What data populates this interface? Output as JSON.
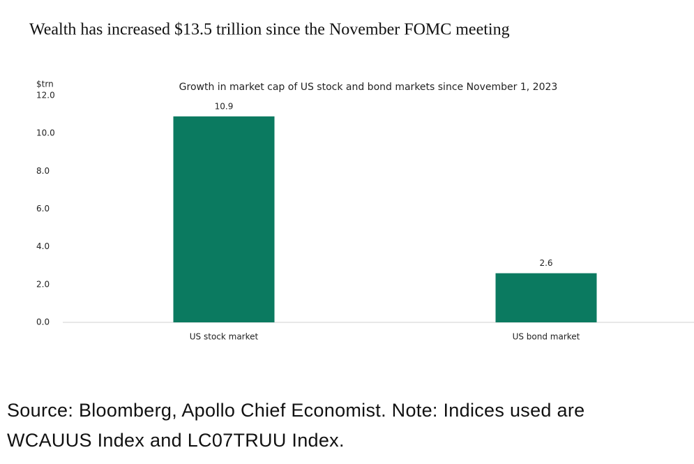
{
  "chart_data": {
    "type": "bar",
    "title": "Wealth has increased $13.5 trillion since the November FOMC meeting",
    "subtitle": "Growth in market cap of US stock and bond markets since November 1, 2023",
    "y_axis_label": "$trn",
    "categories": [
      "US stock market",
      "US bond market"
    ],
    "values": [
      10.9,
      2.6
    ],
    "color": "#0b7a60",
    "ylim": [
      0,
      12
    ],
    "yticks": [
      {
        "value": 0,
        "label": "0.0"
      },
      {
        "value": 2,
        "label": "2.0"
      },
      {
        "value": 4,
        "label": "4.0"
      },
      {
        "value": 6,
        "label": "6.0"
      },
      {
        "value": 8,
        "label": "8.0"
      },
      {
        "value": 10,
        "label": "10.0"
      },
      {
        "value": 12,
        "label": "12.0"
      }
    ],
    "grid": false,
    "source_lines": [
      "Source: Bloomberg, Apollo Chief Economist. Note: Indices used are",
      "WCAUUS Index and LC07TRUU Index."
    ]
  }
}
